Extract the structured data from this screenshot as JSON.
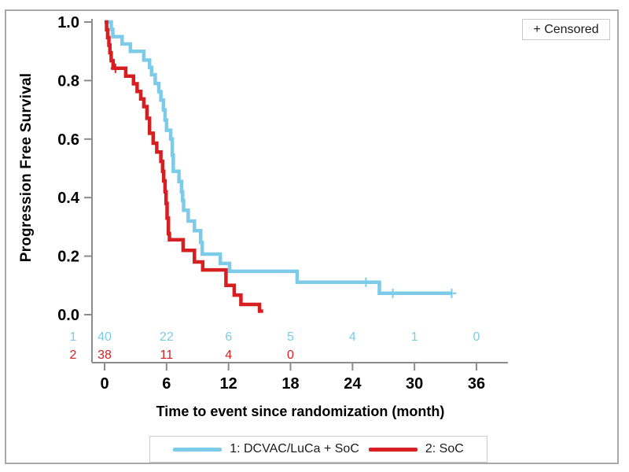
{
  "figure": {
    "censored_label": "+ Censored",
    "y_axis_title": "Progression Free Survival",
    "x_axis_title": "Time to event since randomization (month)"
  },
  "legend": {
    "items": [
      {
        "label": "1: DCVAC/LuCa + SoC",
        "color": "#7bcbe9"
      },
      {
        "label": "2: SoC",
        "color": "#d71f22"
      }
    ]
  },
  "chart_data": {
    "type": "line",
    "subtype": "kaplan-meier-step",
    "title": "",
    "xlabel": "Time to event since randomization (month)",
    "ylabel": "Progression Free Survival",
    "xlim": [
      0,
      36
    ],
    "ylim": [
      0.0,
      1.0
    ],
    "x_ticks": [
      0,
      6,
      12,
      18,
      24,
      30,
      36
    ],
    "y_ticks": [
      {
        "value": 1.0,
        "label": "1.0"
      },
      {
        "value": 0.8,
        "label": "0.8"
      },
      {
        "value": 0.6,
        "label": "0.6"
      },
      {
        "value": 0.4,
        "label": "0.4"
      },
      {
        "value": 0.2,
        "label": "0.2"
      },
      {
        "value": 0.0,
        "label": "0.0"
      }
    ],
    "grid": false,
    "legend_position": "bottom",
    "censored_marker": "+",
    "series": [
      {
        "name": "1: DCVAC/LuCa + SoC",
        "color": "#7bcbe9",
        "steps": [
          [
            0,
            1.0
          ],
          [
            0.65,
            0.975
          ],
          [
            0.8,
            0.95
          ],
          [
            1.7,
            0.925
          ],
          [
            2.5,
            0.9
          ],
          [
            3.8,
            0.87
          ],
          [
            4.35,
            0.845
          ],
          [
            4.55,
            0.82
          ],
          [
            4.9,
            0.79
          ],
          [
            5.25,
            0.762
          ],
          [
            5.45,
            0.733
          ],
          [
            5.7,
            0.7
          ],
          [
            5.85,
            0.665
          ],
          [
            6.0,
            0.63
          ],
          [
            6.4,
            0.6
          ],
          [
            6.55,
            0.545
          ],
          [
            6.65,
            0.49
          ],
          [
            7.2,
            0.455
          ],
          [
            7.45,
            0.42
          ],
          [
            7.55,
            0.39
          ],
          [
            7.65,
            0.357
          ],
          [
            8.1,
            0.32
          ],
          [
            8.7,
            0.287
          ],
          [
            9.3,
            0.247
          ],
          [
            9.45,
            0.207
          ],
          [
            11.2,
            0.175
          ],
          [
            12.1,
            0.148
          ],
          [
            18.65,
            0.111
          ],
          [
            26.6,
            0.073
          ]
        ],
        "end_time": 33.6,
        "censored": [
          [
            25.3,
            0.111
          ],
          [
            27.9,
            0.073
          ],
          [
            33.6,
            0.073
          ]
        ]
      },
      {
        "name": "2: SoC",
        "color": "#d71f22",
        "steps": [
          [
            0,
            1.0
          ],
          [
            0.2,
            0.974
          ],
          [
            0.3,
            0.947
          ],
          [
            0.42,
            0.921
          ],
          [
            0.52,
            0.895
          ],
          [
            0.64,
            0.868
          ],
          [
            0.82,
            0.842
          ],
          [
            2.05,
            0.815
          ],
          [
            2.8,
            0.789
          ],
          [
            3.15,
            0.763
          ],
          [
            3.5,
            0.737
          ],
          [
            3.8,
            0.711
          ],
          [
            4.1,
            0.671
          ],
          [
            4.35,
            0.62
          ],
          [
            4.7,
            0.586
          ],
          [
            5.05,
            0.556
          ],
          [
            5.45,
            0.524
          ],
          [
            5.62,
            0.49
          ],
          [
            5.72,
            0.457
          ],
          [
            5.85,
            0.42
          ],
          [
            5.95,
            0.38
          ],
          [
            6.05,
            0.33
          ],
          [
            6.18,
            0.277
          ],
          [
            6.28,
            0.256
          ],
          [
            7.6,
            0.22
          ],
          [
            8.7,
            0.18
          ],
          [
            9.5,
            0.153
          ],
          [
            11.75,
            0.1
          ],
          [
            12.55,
            0.067
          ],
          [
            13.2,
            0.035
          ],
          [
            15.0,
            0.012
          ]
        ],
        "end_time": 15.35,
        "censored": [
          [
            1.05,
            0.842
          ]
        ]
      }
    ],
    "at_risk": {
      "rows": [
        {
          "id": "1",
          "color": "#7bcbe9",
          "times": [
            0,
            6,
            12,
            18,
            24,
            30,
            36
          ],
          "counts": [
            "40",
            "22",
            "6",
            "5",
            "4",
            "1",
            "0"
          ]
        },
        {
          "id": "2",
          "color": "#d71f22",
          "times": [
            0,
            6,
            12,
            18
          ],
          "counts": [
            "38",
            "11",
            "4",
            "0"
          ]
        }
      ]
    }
  }
}
